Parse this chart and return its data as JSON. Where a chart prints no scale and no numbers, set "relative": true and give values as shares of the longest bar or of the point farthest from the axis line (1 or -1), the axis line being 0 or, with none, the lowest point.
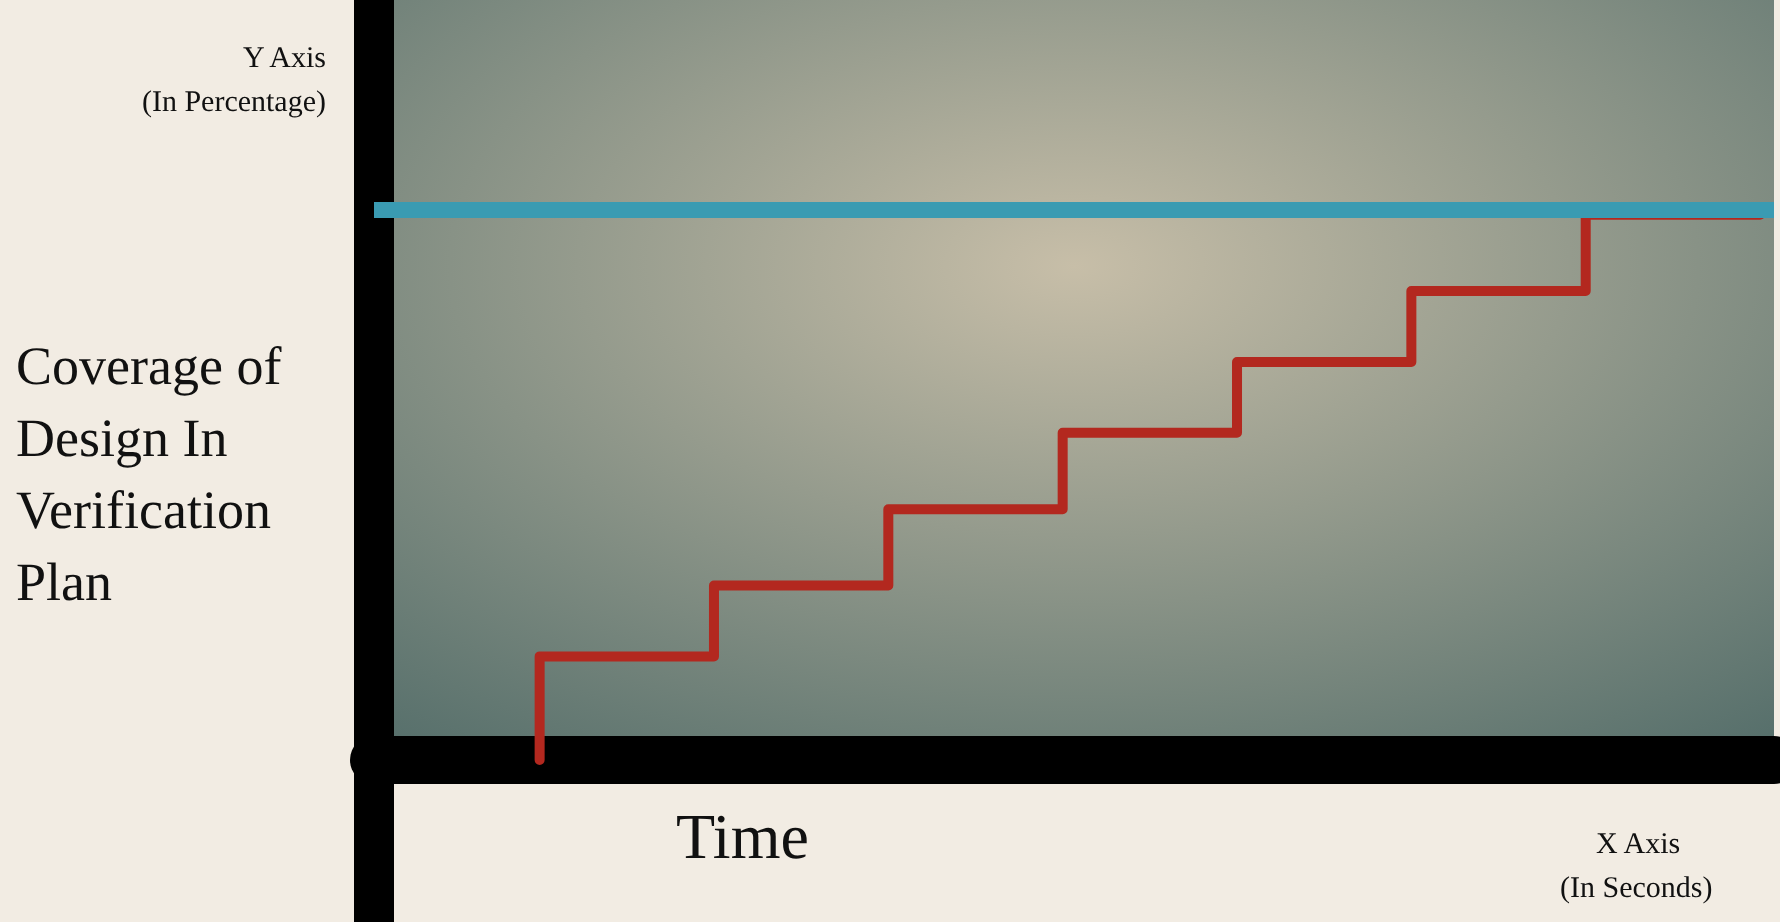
{
  "chart_data": {
    "type": "step",
    "relative": true,
    "xlabel": "Time",
    "ylabel": "Coverage of Design In Verification Plan",
    "annotations": [
      "Y Axis",
      "(In Percentage)",
      "X Axis",
      "(In Seconds)"
    ],
    "categories": [
      null,
      null,
      null,
      null,
      null,
      null,
      null,
      null
    ],
    "series": [
      {
        "color": "#b3281f",
        "values": [
          0,
          0.19,
          0.32,
          0.46,
          0.6,
          0.73,
          0.86,
          1
        ]
      }
    ],
    "ref_lines": [
      {
        "axis": "y",
        "value": 1.01,
        "color": "#3a9bb2"
      }
    ],
    "grid": false,
    "marker": "none",
    "line_style": "solid"
  }
}
